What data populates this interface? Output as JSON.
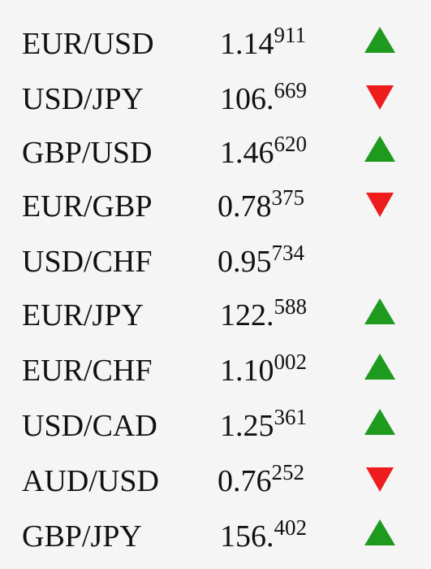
{
  "colors": {
    "up": "#1e9a1e",
    "down": "#ee1c1c",
    "text": "#111111",
    "background": "#f5f5f5"
  },
  "rates": [
    {
      "pair": "EUR/USD",
      "price_main": "1.14",
      "price_pips": "911",
      "direction": "up"
    },
    {
      "pair": "USD/JPY",
      "price_main": "106.",
      "price_pips": "669",
      "direction": "down"
    },
    {
      "pair": "GBP/USD",
      "price_main": "1.46",
      "price_pips": "620",
      "direction": "up"
    },
    {
      "pair": "EUR/GBP",
      "price_main": "0.78",
      "price_pips": "375",
      "direction": "down"
    },
    {
      "pair": "USD/CHF",
      "price_main": "0.95",
      "price_pips": "734",
      "direction": "none"
    },
    {
      "pair": "EUR/JPY",
      "price_main": "122.",
      "price_pips": "588",
      "direction": "up"
    },
    {
      "pair": "EUR/CHF",
      "price_main": "1.10",
      "price_pips": "002",
      "direction": "up"
    },
    {
      "pair": "USD/CAD",
      "price_main": "1.25",
      "price_pips": "361",
      "direction": "up"
    },
    {
      "pair": "AUD/USD",
      "price_main": "0.76",
      "price_pips": "252",
      "direction": "down"
    },
    {
      "pair": "GBP/JPY",
      "price_main": "156.",
      "price_pips": "402",
      "direction": "up"
    }
  ]
}
